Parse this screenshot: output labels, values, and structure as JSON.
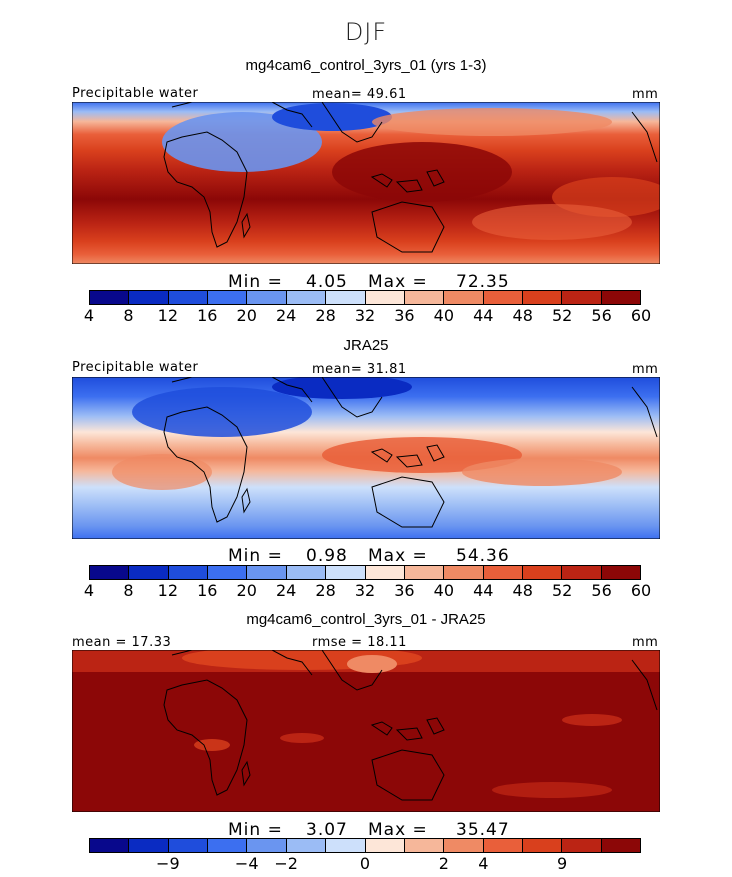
{
  "figure": {
    "season": "DJF",
    "units": "mm"
  },
  "colors": [
    "#08088c",
    "#0a2bc2",
    "#1f4ddc",
    "#3c6ff0",
    "#6a95f0",
    "#9bbcf5",
    "#cde0fb",
    "#fde6d8",
    "#f6b79a",
    "#ef8a64",
    "#e95f3a",
    "#d9401d",
    "#bb2414",
    "#8c0707"
  ],
  "panels": [
    {
      "title": "mg4cam6_control_3yrs_01 (yrs 1-3)",
      "left_label": "Precipitable water",
      "mid_label": "mean=  49.61",
      "units": "mm",
      "min_label": "Min =",
      "min_value": "4.05",
      "max_label": "Max =",
      "max_value": "72.35",
      "ticks": [
        "4",
        "8",
        "12",
        "16",
        "20",
        "24",
        "28",
        "32",
        "36",
        "40",
        "44",
        "48",
        "52",
        "56",
        "60"
      ]
    },
    {
      "title": "JRA25",
      "left_label": "Precipitable water",
      "mid_label": "mean=  31.81",
      "units": "mm",
      "min_label": "Min =",
      "min_value": "0.98",
      "max_label": "Max =",
      "max_value": "54.36",
      "ticks": [
        "4",
        "8",
        "12",
        "16",
        "20",
        "24",
        "28",
        "32",
        "36",
        "40",
        "44",
        "48",
        "52",
        "56",
        "60"
      ]
    },
    {
      "title": "mg4cam6_control_3yrs_01 - JRA25",
      "left_label": "mean =  17.33",
      "mid_label": "rmse =  18.11",
      "units": "mm",
      "min_label": "Min =",
      "min_value": "3.07",
      "max_label": "Max =",
      "max_value": "35.47",
      "ticks": [
        "−9",
        "−4",
        "−2",
        "0",
        "2",
        "4",
        "9"
      ]
    }
  ]
}
